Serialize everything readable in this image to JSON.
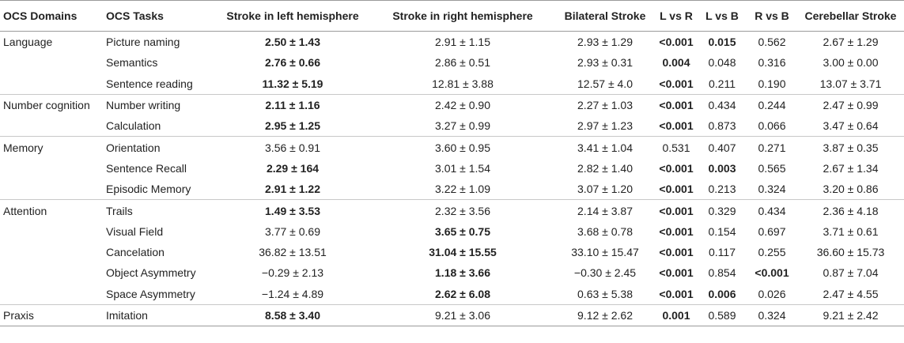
{
  "headers": [
    "OCS Domains",
    "OCS Tasks",
    "Stroke in left hemisphere",
    "Stroke in right hemisphere",
    "Bilateral Stroke",
    "L vs R",
    "L vs B",
    "R vs B",
    "Cerebellar Stroke"
  ],
  "rows": [
    {
      "domain": "Language",
      "task": "Picture naming",
      "vals": [
        {
          "v": "2.50 ± 1.43",
          "b": true
        },
        {
          "v": "2.91 ± 1.15"
        },
        {
          "v": "2.93 ± 1.29"
        },
        {
          "v": "<0.001",
          "b": true
        },
        {
          "v": "0.015",
          "b": true
        },
        {
          "v": "0.562"
        },
        {
          "v": "2.67 ± 1.29"
        }
      ]
    },
    {
      "domain": "",
      "task": "Semantics",
      "vals": [
        {
          "v": "2.76 ± 0.66",
          "b": true
        },
        {
          "v": "2.86 ± 0.51"
        },
        {
          "v": "2.93 ± 0.31"
        },
        {
          "v": "0.004",
          "b": true
        },
        {
          "v": "0.048"
        },
        {
          "v": "0.316"
        },
        {
          "v": "3.00 ± 0.00"
        }
      ]
    },
    {
      "domain": "",
      "task": "Sentence reading",
      "vals": [
        {
          "v": "11.32 ± 5.19",
          "b": true
        },
        {
          "v": "12.81 ± 3.88"
        },
        {
          "v": "12.57 ± 4.0"
        },
        {
          "v": "<0.001",
          "b": true
        },
        {
          "v": "0.211"
        },
        {
          "v": "0.190"
        },
        {
          "v": "13.07 ± 3.71"
        }
      ]
    },
    {
      "domain": "Number cognition",
      "task": "Number writing",
      "vals": [
        {
          "v": "2.11 ± 1.16",
          "b": true
        },
        {
          "v": "2.42 ± 0.90"
        },
        {
          "v": "2.27 ± 1.03"
        },
        {
          "v": "<0.001",
          "b": true
        },
        {
          "v": "0.434"
        },
        {
          "v": "0.244"
        },
        {
          "v": "2.47 ± 0.99"
        }
      ]
    },
    {
      "domain": "",
      "task": "Calculation",
      "vals": [
        {
          "v": "2.95 ± 1.25",
          "b": true
        },
        {
          "v": "3.27 ± 0.99"
        },
        {
          "v": "2.97 ± 1.23"
        },
        {
          "v": "<0.001",
          "b": true
        },
        {
          "v": "0.873"
        },
        {
          "v": "0.066"
        },
        {
          "v": "3.47 ± 0.64"
        }
      ]
    },
    {
      "domain": "Memory",
      "task": "Orientation",
      "vals": [
        {
          "v": "3.56 ± 0.91"
        },
        {
          "v": "3.60 ± 0.95"
        },
        {
          "v": "3.41 ± 1.04"
        },
        {
          "v": "0.531"
        },
        {
          "v": "0.407"
        },
        {
          "v": "0.271"
        },
        {
          "v": "3.87 ± 0.35"
        }
      ]
    },
    {
      "domain": "",
      "task": "Sentence Recall",
      "vals": [
        {
          "v": "2.29 ± 164",
          "b": true
        },
        {
          "v": "3.01 ± 1.54"
        },
        {
          "v": "2.82 ± 1.40"
        },
        {
          "v": "<0.001",
          "b": true
        },
        {
          "v": "0.003",
          "b": true
        },
        {
          "v": "0.565"
        },
        {
          "v": "2.67 ± 1.34"
        }
      ]
    },
    {
      "domain": "",
      "task": "Episodic Memory",
      "vals": [
        {
          "v": "2.91 ± 1.22",
          "b": true
        },
        {
          "v": "3.22 ± 1.09"
        },
        {
          "v": "3.07 ± 1.20"
        },
        {
          "v": "<0.001",
          "b": true
        },
        {
          "v": "0.213"
        },
        {
          "v": "0.324"
        },
        {
          "v": "3.20 ± 0.86"
        }
      ]
    },
    {
      "domain": "Attention",
      "task": "Trails",
      "vals": [
        {
          "v": "1.49 ± 3.53",
          "b": true
        },
        {
          "v": "2.32 ± 3.56"
        },
        {
          "v": "2.14 ± 3.87"
        },
        {
          "v": "<0.001",
          "b": true
        },
        {
          "v": "0.329"
        },
        {
          "v": "0.434"
        },
        {
          "v": "2.36 ± 4.18"
        }
      ]
    },
    {
      "domain": "",
      "task": "Visual Field",
      "vals": [
        {
          "v": "3.77 ± 0.69"
        },
        {
          "v": "3.65 ± 0.75",
          "b": true
        },
        {
          "v": "3.68 ± 0.78"
        },
        {
          "v": "<0.001",
          "b": true
        },
        {
          "v": "0.154"
        },
        {
          "v": "0.697"
        },
        {
          "v": "3.71 ± 0.61"
        }
      ]
    },
    {
      "domain": "",
      "task": "Cancelation",
      "vals": [
        {
          "v": "36.82 ± 13.51"
        },
        {
          "v": "31.04 ± 15.55",
          "b": true
        },
        {
          "v": "33.10 ± 15.47"
        },
        {
          "v": "<0.001",
          "b": true
        },
        {
          "v": "0.117"
        },
        {
          "v": "0.255"
        },
        {
          "v": "36.60 ± 15.73"
        }
      ]
    },
    {
      "domain": "",
      "task": "Object Asymmetry",
      "vals": [
        {
          "v": "−0.29 ± 2.13"
        },
        {
          "v": "1.18 ± 3.66",
          "b": true
        },
        {
          "v": "−0.30 ± 2.45"
        },
        {
          "v": "<0.001",
          "b": true
        },
        {
          "v": "0.854"
        },
        {
          "v": "<0.001",
          "b": true
        },
        {
          "v": "0.87 ± 7.04"
        }
      ]
    },
    {
      "domain": "",
      "task": "Space Asymmetry",
      "vals": [
        {
          "v": "−1.24 ± 4.89"
        },
        {
          "v": "2.62 ± 6.08",
          "b": true
        },
        {
          "v": "0.63 ± 5.38"
        },
        {
          "v": "<0.001",
          "b": true
        },
        {
          "v": "0.006",
          "b": true
        },
        {
          "v": "0.026"
        },
        {
          "v": "2.47 ± 4.55"
        }
      ]
    },
    {
      "domain": "Praxis",
      "task": "Imitation",
      "vals": [
        {
          "v": "8.58 ± 3.40",
          "b": true
        },
        {
          "v": "9.21 ± 3.06"
        },
        {
          "v": "9.12 ± 2.62"
        },
        {
          "v": "0.001",
          "b": true
        },
        {
          "v": "0.589"
        },
        {
          "v": "0.324"
        },
        {
          "v": "9.21 ± 2.42"
        }
      ]
    }
  ]
}
